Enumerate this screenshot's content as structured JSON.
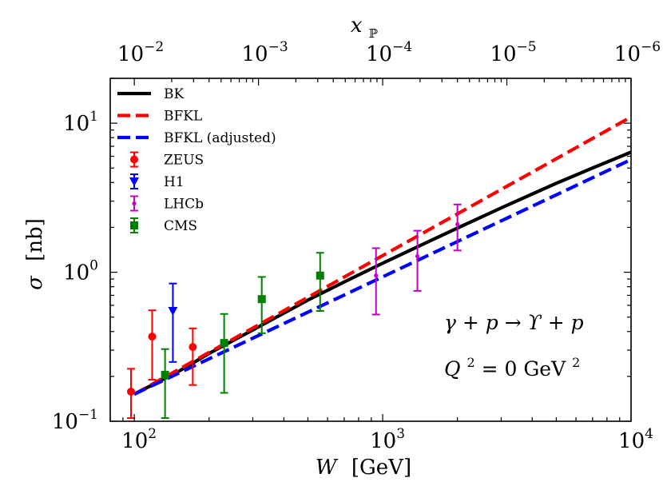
{
  "chart_data": {
    "type": "line",
    "xscale": "log",
    "yscale": "log",
    "xlim": [
      80,
      10000
    ],
    "ylim": [
      0.1,
      20
    ],
    "xlabel_var": "W",
    "xlabel_unit": "[GeV]",
    "ylabel_var": "σ",
    "ylabel_unit": "[nb]",
    "top_axis": {
      "label_main": "x",
      "label_sub": "ℙ",
      "ticks": [
        {
          "W": 100,
          "base": "10",
          "exp": "−2"
        },
        {
          "W": 316.2,
          "base": "10",
          "exp": "−3"
        },
        {
          "W": 1000,
          "base": "10",
          "exp": "−4"
        },
        {
          "W": 3162.3,
          "base": "10",
          "exp": "−5"
        },
        {
          "W": 10000,
          "base": "10",
          "exp": "−6"
        }
      ]
    },
    "x_ticks": [
      {
        "value": 100,
        "base": "10",
        "exp": "2"
      },
      {
        "value": 1000,
        "base": "10",
        "exp": "3"
      },
      {
        "value": 10000,
        "base": "10",
        "exp": "4"
      }
    ],
    "y_ticks": [
      {
        "value": 0.1,
        "base": "10",
        "exp": "−1"
      },
      {
        "value": 1,
        "base": "10",
        "exp": "0"
      },
      {
        "value": 10,
        "base": "10",
        "exp": "1"
      }
    ],
    "curves": [
      {
        "name": "BK",
        "color": "#000000",
        "dash": "solid",
        "x": [
          100,
          150,
          200,
          300,
          500,
          700,
          1000,
          1500,
          2000,
          3000,
          5000,
          7000,
          10000
        ],
        "y": [
          0.152,
          0.215,
          0.285,
          0.41,
          0.65,
          0.86,
          1.15,
          1.58,
          1.98,
          2.7,
          3.95,
          5.0,
          6.4
        ]
      },
      {
        "name": "BFKL",
        "color": "#ff0000",
        "dash": "dashed",
        "x": [
          100,
          10000
        ],
        "y": [
          0.152,
          11.0
        ]
      },
      {
        "name": "BFKL (adjusted)",
        "color": "#0000ff",
        "dash": "dashed",
        "x": [
          100,
          10000
        ],
        "y": [
          0.152,
          5.7
        ]
      }
    ],
    "datasets": [
      {
        "name": "ZEUS",
        "color": "#ff0000",
        "marker": "circle",
        "points": [
          {
            "x": 97,
            "y": 0.158,
            "lo": 0.105,
            "hi": 0.225
          },
          {
            "x": 118,
            "y": 0.37,
            "lo": 0.19,
            "hi": 0.555
          },
          {
            "x": 172,
            "y": 0.315,
            "lo": 0.175,
            "hi": 0.42
          }
        ]
      },
      {
        "name": "H1",
        "color": "#0000ff",
        "marker": "triangle-down",
        "points": [
          {
            "x": 143,
            "y": 0.55,
            "lo": 0.25,
            "hi": 0.84
          }
        ]
      },
      {
        "name": "LHCb",
        "color": "#bf00bf",
        "marker": "small-dot",
        "points": [
          {
            "x": 940,
            "y": 0.95,
            "lo": 0.52,
            "hi": 1.45
          },
          {
            "x": 1380,
            "y": 1.28,
            "lo": 0.75,
            "hi": 1.9
          },
          {
            "x": 2000,
            "y": 2.1,
            "lo": 1.4,
            "hi": 2.85
          }
        ]
      },
      {
        "name": "CMS",
        "color": "#008000",
        "marker": "square",
        "points": [
          {
            "x": 133,
            "y": 0.205,
            "lo": 0.105,
            "hi": 0.305
          },
          {
            "x": 230,
            "y": 0.335,
            "lo": 0.155,
            "hi": 0.525
          },
          {
            "x": 326,
            "y": 0.66,
            "lo": 0.39,
            "hi": 0.93
          },
          {
            "x": 560,
            "y": 0.95,
            "lo": 0.55,
            "hi": 1.35
          }
        ]
      }
    ],
    "legend_location": "top-left",
    "annotation": {
      "process": "γ + p → ϒ + p",
      "q2_lhs": "Q",
      "q2_exp": "2",
      "q2_eq": " = 0 GeV",
      "q2_unit_exp": "2"
    }
  }
}
